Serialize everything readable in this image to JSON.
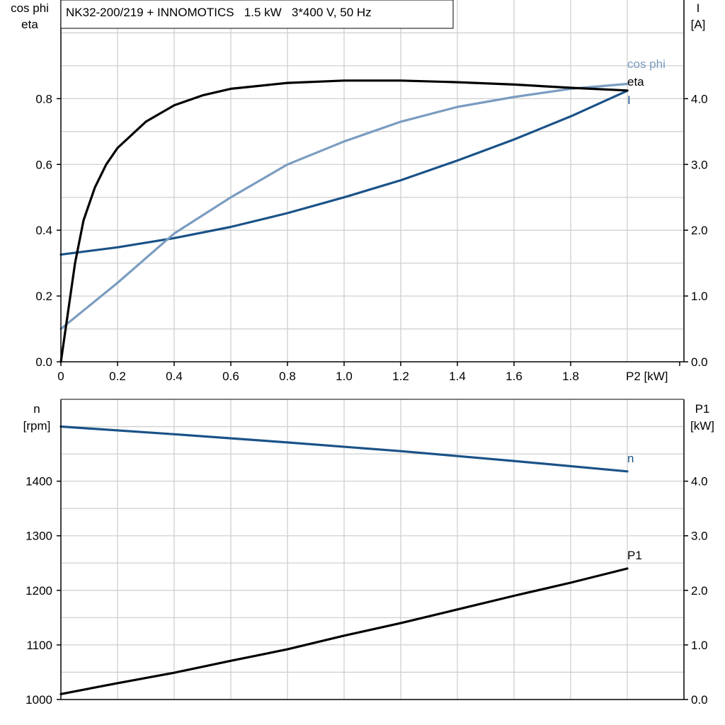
{
  "chart_data": [
    {
      "type": "line",
      "title": "NK32-200/219 + INNOMOTICS   1.5 kW   3*400 V, 50 Hz",
      "xlabel": "P2 [kW]",
      "ylabel_left": [
        "cos phi",
        "eta"
      ],
      "ylabel_right": [
        "I",
        "[A]"
      ],
      "xlim": [
        0,
        2.2
      ],
      "ylim_left": [
        0,
        1.1
      ],
      "ylim_right": [
        0,
        5.5
      ],
      "x_ticks": [
        "0",
        "0.2",
        "0.4",
        "0.6",
        "0.8",
        "1.0",
        "1.2",
        "1.4",
        "1.6",
        "1.8"
      ],
      "y_ticks_left": [
        "0.0",
        "0.2",
        "0.4",
        "0.6",
        "0.8"
      ],
      "y_ticks_right": [
        "0.0",
        "1.0",
        "2.0",
        "3.0",
        "4.0"
      ],
      "grid": true,
      "series": [
        {
          "name": "eta",
          "axis": "left",
          "color": "#000000",
          "x": [
            0,
            0.02,
            0.05,
            0.08,
            0.12,
            0.16,
            0.2,
            0.3,
            0.4,
            0.5,
            0.6,
            0.8,
            1.0,
            1.2,
            1.4,
            1.6,
            1.8,
            2.0
          ],
          "y": [
            0,
            0.12,
            0.3,
            0.43,
            0.53,
            0.6,
            0.65,
            0.73,
            0.78,
            0.81,
            0.83,
            0.848,
            0.855,
            0.855,
            0.85,
            0.843,
            0.833,
            0.825
          ]
        },
        {
          "name": "cos phi",
          "axis": "left",
          "color": "#7a9cc0",
          "x": [
            0,
            0.2,
            0.4,
            0.6,
            0.8,
            1.0,
            1.2,
            1.4,
            1.6,
            1.8,
            2.0
          ],
          "y": [
            0.1,
            0.24,
            0.39,
            0.5,
            0.6,
            0.67,
            0.73,
            0.775,
            0.805,
            0.83,
            0.845
          ]
        },
        {
          "name": "I",
          "axis": "right",
          "color": "#1a5288",
          "x": [
            0,
            0.2,
            0.4,
            0.6,
            0.8,
            1.0,
            1.2,
            1.4,
            1.6,
            1.8,
            2.0
          ],
          "y": [
            1.63,
            1.74,
            1.88,
            2.05,
            2.26,
            2.5,
            2.76,
            3.06,
            3.38,
            3.73,
            4.12
          ]
        }
      ]
    },
    {
      "type": "line",
      "ylabel_left": [
        "n",
        "[rpm]"
      ],
      "ylabel_right": [
        "P1",
        "[kW]"
      ],
      "xlim": [
        0,
        2.2
      ],
      "ylim_left": [
        1000,
        1550
      ],
      "ylim_right": [
        0,
        5.5
      ],
      "y_ticks_left": [
        "1000",
        "1100",
        "1200",
        "1300",
        "1400"
      ],
      "y_ticks_right": [
        "0.0",
        "1.0",
        "2.0",
        "3.0",
        "4.0"
      ],
      "grid": true,
      "series": [
        {
          "name": "n",
          "axis": "left",
          "color": "#1a5288",
          "x": [
            0,
            0.4,
            0.8,
            1.2,
            1.6,
            2.0
          ],
          "y": [
            1500,
            1486,
            1471,
            1455,
            1437,
            1418
          ]
        },
        {
          "name": "P1",
          "axis": "right",
          "color": "#000000",
          "x": [
            0,
            0.2,
            0.4,
            0.6,
            0.8,
            1.0,
            1.2,
            1.4,
            1.6,
            1.8,
            2.0
          ],
          "y": [
            0.1,
            0.3,
            0.49,
            0.71,
            0.92,
            1.17,
            1.4,
            1.65,
            1.9,
            2.14,
            2.4
          ]
        }
      ]
    }
  ]
}
